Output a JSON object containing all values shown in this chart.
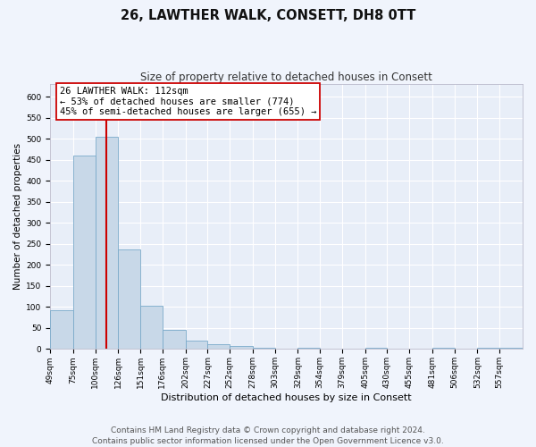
{
  "title": "26, LAWTHER WALK, CONSETT, DH8 0TT",
  "subtitle": "Size of property relative to detached houses in Consett",
  "xlabel": "Distribution of detached houses by size in Consett",
  "ylabel": "Number of detached properties",
  "bar_color": "#c8d8e8",
  "bar_edge_color": "#7aaaca",
  "background_color": "#e8eef8",
  "grid_color": "#ffffff",
  "fig_bg_color": "#f0f4fc",
  "vline_x": 112,
  "vline_color": "#cc0000",
  "annotation_text": "26 LAWTHER WALK: 112sqm\n← 53% of detached houses are smaller (774)\n45% of semi-detached houses are larger (655) →",
  "annotation_box_color": "white",
  "annotation_box_edge": "#cc0000",
  "categories": [
    "49sqm",
    "75sqm",
    "100sqm",
    "126sqm",
    "151sqm",
    "176sqm",
    "202sqm",
    "227sqm",
    "252sqm",
    "278sqm",
    "303sqm",
    "329sqm",
    "354sqm",
    "379sqm",
    "405sqm",
    "430sqm",
    "455sqm",
    "481sqm",
    "506sqm",
    "532sqm",
    "557sqm"
  ],
  "bin_edges": [
    49,
    75,
    100,
    126,
    151,
    176,
    202,
    227,
    252,
    278,
    303,
    329,
    354,
    379,
    405,
    430,
    455,
    481,
    506,
    532,
    557,
    583
  ],
  "values": [
    92,
    460,
    505,
    237,
    103,
    46,
    19,
    12,
    7,
    4,
    0,
    4,
    0,
    0,
    3,
    0,
    0,
    3,
    0,
    3,
    4
  ],
  "ylim": [
    0,
    630
  ],
  "yticks": [
    0,
    50,
    100,
    150,
    200,
    250,
    300,
    350,
    400,
    450,
    500,
    550,
    600
  ],
  "footer": "Contains HM Land Registry data © Crown copyright and database right 2024.\nContains public sector information licensed under the Open Government Licence v3.0.",
  "footer_fontsize": 6.5,
  "title_fontsize": 10.5,
  "subtitle_fontsize": 8.5,
  "xlabel_fontsize": 8,
  "ylabel_fontsize": 7.5,
  "tick_fontsize": 6.5,
  "annot_fontsize": 7.5
}
